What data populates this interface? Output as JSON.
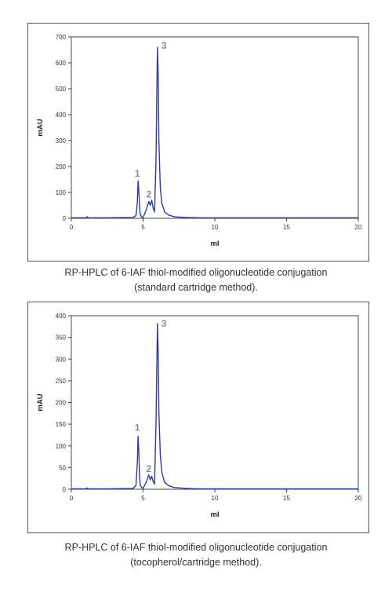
{
  "chart_data": [
    {
      "type": "line",
      "title": "",
      "xlabel": "ml",
      "ylabel": "mAU",
      "xlim": [
        0,
        20
      ],
      "ylim": [
        0,
        700
      ],
      "xticks": [
        0,
        5,
        10,
        15,
        20
      ],
      "yticks": [
        0,
        100,
        200,
        300,
        400,
        500,
        600,
        700
      ],
      "grid": false,
      "line_color": "#2e3a9e",
      "series": [
        {
          "x": [
            0,
            1.0,
            1.1,
            1.2,
            2.5,
            4.3,
            4.5,
            4.6,
            4.65,
            4.7,
            4.75,
            4.8,
            4.9,
            5.0,
            5.2,
            5.4,
            5.5,
            5.6,
            5.7,
            5.8,
            5.9,
            6.0,
            6.05,
            6.1,
            6.2,
            6.3,
            6.5,
            6.8,
            7.2,
            8.0,
            9.0,
            20
          ],
          "y": [
            2,
            2,
            6,
            2,
            2,
            3,
            10,
            60,
            145,
            110,
            50,
            15,
            5,
            3,
            30,
            65,
            50,
            70,
            40,
            25,
            220,
            660,
            560,
            300,
            120,
            60,
            25,
            12,
            6,
            3,
            2,
            2
          ]
        }
      ],
      "annotations": [
        {
          "text": "1",
          "x": 4.6,
          "y": 160
        },
        {
          "text": "2",
          "x": 5.4,
          "y": 80
        },
        {
          "text": "3",
          "x": 6.45,
          "y": 655
        }
      ]
    },
    {
      "type": "line",
      "title": "",
      "xlabel": "ml",
      "ylabel": "mAU",
      "xlim": [
        0,
        20
      ],
      "ylim": [
        0,
        400
      ],
      "xticks": [
        0,
        5,
        10,
        15,
        20
      ],
      "yticks": [
        0,
        50,
        100,
        150,
        200,
        250,
        300,
        350,
        400
      ],
      "grid": false,
      "line_color": "#2e3a9e",
      "series": [
        {
          "x": [
            0,
            1.0,
            1.1,
            1.2,
            2.5,
            4.3,
            4.5,
            4.6,
            4.65,
            4.7,
            4.75,
            4.8,
            4.9,
            5.0,
            5.2,
            5.4,
            5.5,
            5.6,
            5.7,
            5.8,
            5.9,
            6.0,
            6.05,
            6.1,
            6.2,
            6.3,
            6.5,
            6.8,
            7.2,
            8.0,
            9.0,
            20
          ],
          "y": [
            1,
            1,
            3,
            1,
            1,
            2,
            8,
            60,
            122,
            90,
            35,
            10,
            4,
            2,
            15,
            33,
            22,
            30,
            18,
            12,
            150,
            382,
            320,
            180,
            80,
            40,
            16,
            8,
            4,
            2,
            1,
            1
          ]
        }
      ],
      "annotations": [
        {
          "text": "1",
          "x": 4.6,
          "y": 135
        },
        {
          "text": "2",
          "x": 5.4,
          "y": 40
        },
        {
          "text": "3",
          "x": 6.45,
          "y": 375
        }
      ]
    }
  ],
  "captions": [
    {
      "line1": "RP-HPLC of 6-IAF thiol-modified oligonucleotide conjugation",
      "line2": "(standard cartridge method)."
    },
    {
      "line1": "RP-HPLC of 6-IAF thiol-modified oligonucleotide conjugation",
      "line2": "(tocopherol/cartridge method)."
    }
  ]
}
